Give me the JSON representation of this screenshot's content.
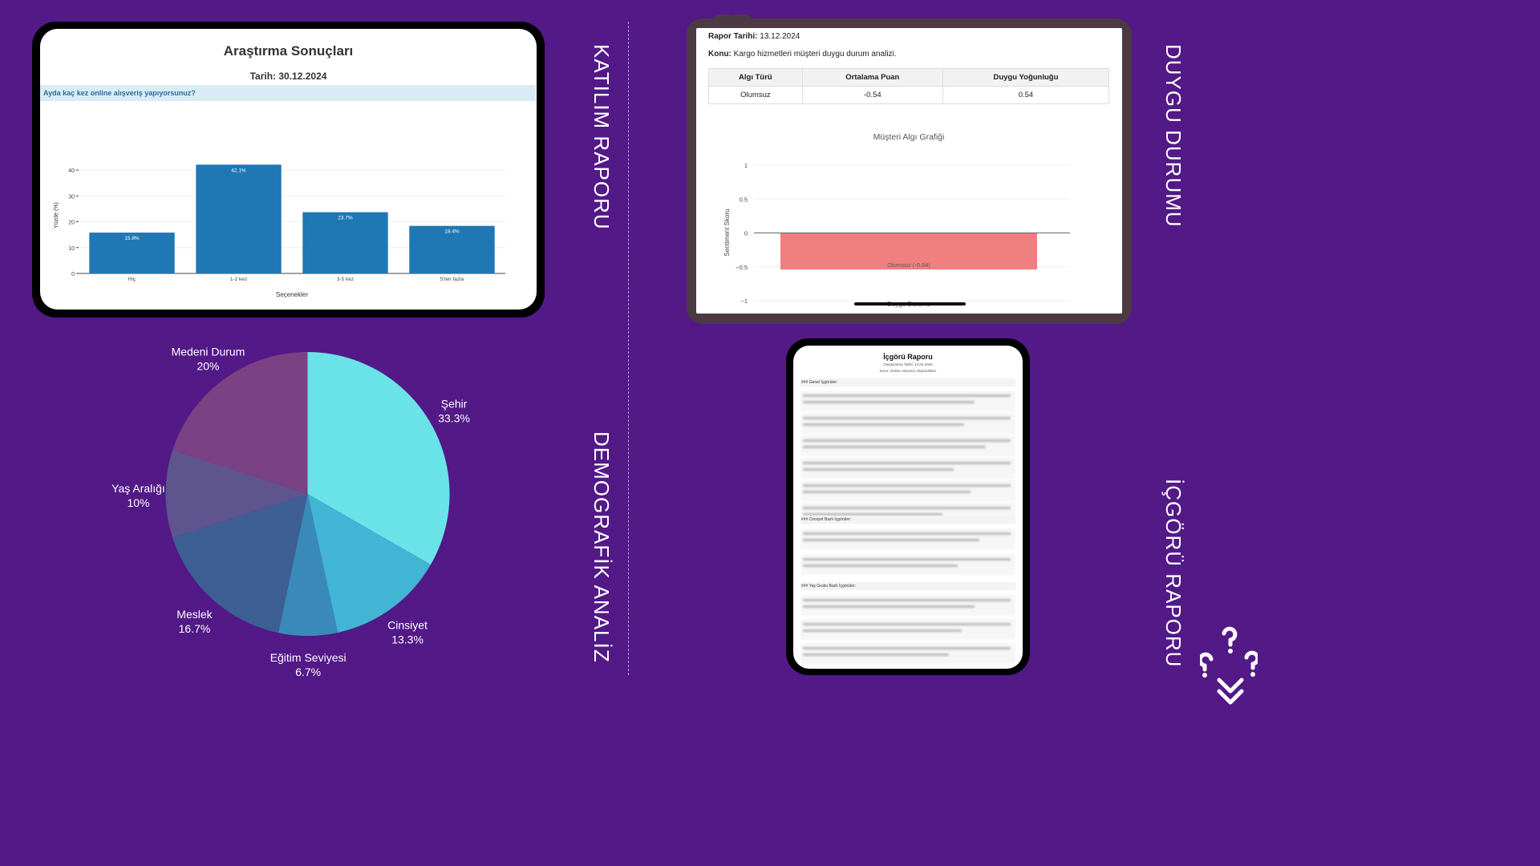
{
  "labels": {
    "katilim": "KATILIM RAPORU",
    "duygu": "DUYGU DURUMU",
    "demografik": "DEMOGRAFİK ANALİZ",
    "icgoru": "İÇGÖRÜ RAPORU"
  },
  "bar_card": {
    "title": "Araştırma Sonuçları",
    "date": "Tarih: 30.12.2024",
    "question": "Ayda kaç kez online alışveriş yapıyorsunuz?"
  },
  "sentiment_card": {
    "report_date_label": "Rapor Tarihi:",
    "report_date_value": "13.12.2024",
    "topic_label": "Konu:",
    "topic_value": "Kargo hizmetleri müşteri duygu durum analizi.",
    "table": {
      "headers": [
        "Algı Türü",
        "Ortalama Puan",
        "Duygu Yoğunluğu"
      ],
      "row": [
        "Olumsuz",
        "-0.54",
        "0.54"
      ]
    }
  },
  "insight_card": {
    "title": "İçgörü Raporu",
    "date": "Oluşturulma Tarihi: 13.04.2025",
    "topic": "Konu: Online Alışveriş Alışkanlıkları",
    "sections": [
      "### Genel İçgörüler:",
      "### Cinsiyet Bazlı İçgörüler:",
      "### Yaş Grubu Bazlı İçgörüler:"
    ]
  },
  "chart_data": [
    {
      "type": "bar",
      "title": "",
      "categories": [
        "Hiç",
        "1-2 kez",
        "3-5 kez",
        "5'ten fazla"
      ],
      "values": [
        15.8,
        42.1,
        23.7,
        18.4
      ],
      "value_labels": [
        "15.8%",
        "42.1%",
        "23.7%",
        "18.4%"
      ],
      "xlabel": "Seçenekler",
      "ylabel": "Yüzde (%)",
      "ylim": [
        0,
        45
      ],
      "yticks": [
        0,
        10,
        20,
        30,
        40
      ],
      "color": "#1f77b4",
      "grid": true
    },
    {
      "type": "bar",
      "title": "Müşteri Algı Grafiği",
      "categories": [
        "Duygu Durumu"
      ],
      "values": [
        -0.54
      ],
      "value_labels": [
        "Olumsuz (-0.54)"
      ],
      "xlabel": "Duygu Durumu",
      "ylabel": "Sentiment Skoru",
      "ylim": [
        -1,
        1
      ],
      "yticks": [
        1,
        0.5,
        0,
        -0.5,
        -1
      ],
      "ytick_labels": [
        "1",
        "0.5",
        "0",
        "−0.5",
        "−1"
      ],
      "color": "#f08080",
      "grid": true
    },
    {
      "type": "pie",
      "title": "",
      "categories": [
        "Şehir",
        "Cinsiyet",
        "Eğitim Seviyesi",
        "Meslek",
        "Yaş Aralığı",
        "Medeni Durum"
      ],
      "values": [
        33.3,
        13.3,
        6.7,
        16.7,
        10,
        20
      ],
      "value_labels": [
        "33.3%",
        "13.3%",
        "6.7%",
        "16.7%",
        "10%",
        "20%"
      ],
      "colors": [
        "#6ae3e8",
        "#42b4d4",
        "#3a8ab9",
        "#3e5f94",
        "#5e558f",
        "#7a4285"
      ]
    }
  ]
}
